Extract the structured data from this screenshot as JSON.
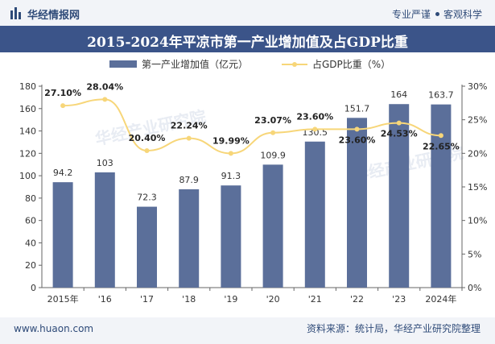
{
  "header": {
    "brand": "华经情报网",
    "slogan_left": "专业严谨",
    "slogan_right": "客观科学"
  },
  "title": "2015-2024年平凉市第一产业增加值及占GDP比重",
  "footer": {
    "site": "www.huaon.com",
    "source": "资料来源：统计局，华经产业研究院整理"
  },
  "watermark": "华经产业研究院",
  "colors": {
    "bar": "#5b6f9a",
    "line": "#f7d679",
    "header_bg": "#3b5489",
    "text": "#2e4a78"
  },
  "chart_data": {
    "type": "bar",
    "categories": [
      "2015年",
      "'16",
      "'17",
      "'18",
      "'19",
      "'20",
      "'21",
      "'22",
      "'23",
      "2024年"
    ],
    "series": [
      {
        "name": "第一产业增加值（亿元）",
        "type": "bar",
        "axis": "left",
        "values": [
          94.2,
          103,
          72.3,
          87.9,
          91.3,
          109.9,
          130.5,
          151.7,
          164,
          163.7
        ],
        "labels": [
          "94.2",
          "103",
          "72.3",
          "87.9",
          "91.3",
          "109.9",
          "130.5",
          "151.7",
          "164",
          "163.7"
        ]
      },
      {
        "name": "占GDP比重（%）",
        "type": "line",
        "axis": "right",
        "values": [
          27.1,
          28.04,
          20.4,
          22.24,
          19.99,
          23.07,
          23.6,
          23.6,
          24.53,
          22.65
        ],
        "labels": [
          "27.10%",
          "28.04%",
          "20.40%",
          "22.24%",
          "19.99%",
          "23.07%",
          "23.60%",
          "23.60%",
          "24.53%",
          "22.65%"
        ]
      }
    ],
    "y_left": {
      "min": 0,
      "max": 180,
      "ticks": [
        "0",
        "20",
        "40",
        "60",
        "80",
        "100",
        "120",
        "140",
        "160",
        "180"
      ]
    },
    "y_right": {
      "min": 0,
      "max": 30,
      "ticks": [
        "0%",
        "5%",
        "10%",
        "15%",
        "20%",
        "25%",
        "30%"
      ]
    },
    "legend_position": "top",
    "grid": false
  }
}
